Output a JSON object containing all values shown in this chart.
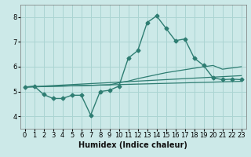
{
  "title": "",
  "xlabel": "Humidex (Indice chaleur)",
  "xlim": [
    -0.5,
    23.5
  ],
  "ylim": [
    3.5,
    8.5
  ],
  "yticks": [
    4,
    5,
    6,
    7,
    8
  ],
  "xticks": [
    0,
    1,
    2,
    3,
    4,
    5,
    6,
    7,
    8,
    9,
    10,
    11,
    12,
    13,
    14,
    15,
    16,
    17,
    18,
    19,
    20,
    21,
    22,
    23
  ],
  "bg_color": "#cce9e8",
  "grid_color": "#aad4d2",
  "line_color": "#2e7d72",
  "line1_x": [
    0,
    1,
    2,
    3,
    4,
    5,
    6,
    7,
    8,
    9,
    10,
    11,
    12,
    13,
    14,
    15,
    16,
    17,
    18,
    19,
    20,
    21,
    22,
    23
  ],
  "line1_y": [
    5.18,
    5.2,
    5.22,
    5.24,
    5.26,
    5.28,
    5.3,
    5.32,
    5.34,
    5.36,
    5.38,
    5.4,
    5.42,
    5.44,
    5.46,
    5.48,
    5.5,
    5.52,
    5.54,
    5.56,
    5.58,
    5.6,
    5.62,
    5.64
  ],
  "line2_x": [
    0,
    1,
    2,
    3,
    4,
    5,
    6,
    7,
    8,
    9,
    10,
    11,
    12,
    13,
    14,
    15,
    16,
    17,
    18,
    19,
    20,
    21,
    22,
    23
  ],
  "line2_y": [
    5.18,
    5.19,
    5.2,
    5.21,
    5.22,
    5.23,
    5.24,
    5.25,
    5.26,
    5.27,
    5.35,
    5.42,
    5.52,
    5.6,
    5.68,
    5.76,
    5.82,
    5.88,
    5.94,
    6.0,
    6.05,
    5.9,
    5.95,
    6.0
  ],
  "line3_x": [
    0,
    1,
    2,
    3,
    4,
    5,
    6,
    7,
    8,
    9,
    10,
    11,
    12,
    13,
    14,
    15,
    16,
    17,
    18,
    19,
    20,
    21,
    22,
    23
  ],
  "line3_y": [
    5.18,
    5.19,
    5.2,
    5.21,
    5.22,
    5.23,
    5.24,
    5.25,
    5.26,
    5.27,
    5.28,
    5.29,
    5.3,
    5.31,
    5.32,
    5.33,
    5.34,
    5.35,
    5.36,
    5.37,
    5.38,
    5.39,
    5.4,
    5.41
  ],
  "line4_x": [
    0,
    1,
    2,
    3,
    4,
    5,
    6,
    7,
    8,
    9,
    10,
    11,
    12,
    13,
    14,
    15,
    16,
    17,
    18,
    19,
    20,
    21,
    22,
    23
  ],
  "line4_y": [
    5.18,
    5.22,
    4.88,
    4.72,
    4.72,
    4.85,
    4.85,
    4.05,
    5.0,
    5.05,
    5.22,
    6.35,
    6.65,
    7.78,
    8.05,
    7.55,
    7.05,
    7.12,
    6.35,
    6.05,
    5.55,
    5.48,
    5.5,
    5.48
  ],
  "marker": "D",
  "marker_size": 2.5,
  "tick_fontsize": 6.0,
  "xlabel_fontsize": 7.0
}
